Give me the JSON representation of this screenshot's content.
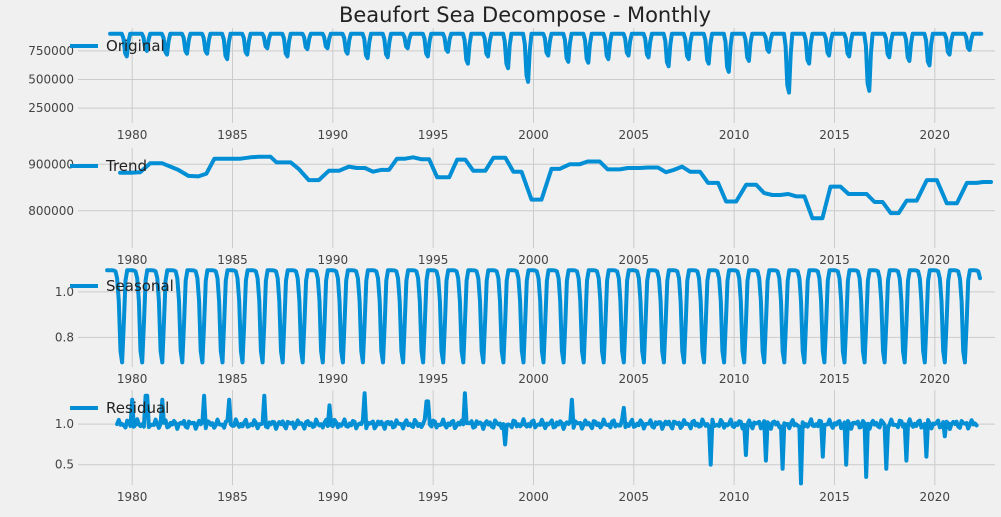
{
  "title": "Beaufort Sea Decompose - Monthly",
  "colors": {
    "series": "#008fd5",
    "background": "#f0f0f0",
    "grid": "#cbcbcb"
  },
  "chart_data": [
    {
      "type": "line",
      "name": "Original",
      "xlim": [
        1977.3,
        2023.0
      ],
      "ylim": [
        120000,
        950000
      ],
      "x_ticks": [
        1980,
        1985,
        1990,
        1995,
        2000,
        2005,
        2010,
        2015,
        2020
      ],
      "y_ticks": [
        250000,
        500000,
        750000
      ],
      "y_tick_labels": [
        "250000",
        "500000",
        "750000"
      ],
      "legend": "Original",
      "start": 1978.9,
      "step": 0.0833333,
      "seasonal_amplitude": [
        250000,
        190000,
        230000,
        220000,
        220000,
        280000,
        230000,
        160000,
        250000,
        170000,
        160000,
        220000,
        270000,
        260000,
        160000,
        250000,
        200000,
        330000,
        250000,
        380000,
        530000,
        240000,
        310000,
        320000,
        280000,
        240000,
        260000,
        360000,
        280000,
        330000,
        420000,
        300000,
        200000,
        650000,
        330000,
        240000,
        250000,
        630000,
        260000,
        300000,
        350000,
        230000,
        180000,
        300000,
        170000
      ],
      "max_value": 900000
    },
    {
      "type": "line",
      "name": "Trend",
      "xlim": [
        1977.3,
        2023.0
      ],
      "ylim": [
        720000,
        935000
      ],
      "x_ticks": [
        1980,
        1985,
        1990,
        1995,
        2000,
        2005,
        2010,
        2015,
        2020
      ],
      "y_ticks": [
        800000,
        900000
      ],
      "y_tick_labels": [
        "800000",
        "900000"
      ],
      "legend": "Trend",
      "points": [
        [
          1979.4,
          882000
        ],
        [
          1979.9,
          882000
        ],
        [
          1980.4,
          883000
        ],
        [
          1980.9,
          902000
        ],
        [
          1981.5,
          902000
        ],
        [
          1982.3,
          888000
        ],
        [
          1982.8,
          875000
        ],
        [
          1983.3,
          874000
        ],
        [
          1983.7,
          880000
        ],
        [
          1984.1,
          912000
        ],
        [
          1984.9,
          912000
        ],
        [
          1985.4,
          912000
        ],
        [
          1985.9,
          915000
        ],
        [
          1986.3,
          916000
        ],
        [
          1986.9,
          916000
        ],
        [
          1987.2,
          904000
        ],
        [
          1987.9,
          904000
        ],
        [
          1988.3,
          890000
        ],
        [
          1988.8,
          866000
        ],
        [
          1989.3,
          866000
        ],
        [
          1989.8,
          886000
        ],
        [
          1990.3,
          886000
        ],
        [
          1990.8,
          895000
        ],
        [
          1991.2,
          892000
        ],
        [
          1991.6,
          892000
        ],
        [
          1992.0,
          884000
        ],
        [
          1992.4,
          888000
        ],
        [
          1992.8,
          888000
        ],
        [
          1993.2,
          912000
        ],
        [
          1993.6,
          912000
        ],
        [
          1994.0,
          915000
        ],
        [
          1994.4,
          911000
        ],
        [
          1994.8,
          911000
        ],
        [
          1995.2,
          872000
        ],
        [
          1995.8,
          872000
        ],
        [
          1996.2,
          910000
        ],
        [
          1996.6,
          910000
        ],
        [
          1997.0,
          886000
        ],
        [
          1997.6,
          886000
        ],
        [
          1998.0,
          914000
        ],
        [
          1998.6,
          914000
        ],
        [
          1999.0,
          884000
        ],
        [
          1999.4,
          884000
        ],
        [
          1999.9,
          824000
        ],
        [
          2000.4,
          824000
        ],
        [
          2000.9,
          890000
        ],
        [
          2001.3,
          890000
        ],
        [
          2001.8,
          900000
        ],
        [
          2002.3,
          900000
        ],
        [
          2002.7,
          906000
        ],
        [
          2003.3,
          906000
        ],
        [
          2003.7,
          889000
        ],
        [
          2004.3,
          889000
        ],
        [
          2004.7,
          892000
        ],
        [
          2005.3,
          892000
        ],
        [
          2005.7,
          893000
        ],
        [
          2006.2,
          893000
        ],
        [
          2006.6,
          883000
        ],
        [
          2007.0,
          888000
        ],
        [
          2007.4,
          895000
        ],
        [
          2007.8,
          884000
        ],
        [
          2008.3,
          884000
        ],
        [
          2008.7,
          860000
        ],
        [
          2009.2,
          860000
        ],
        [
          2009.6,
          820000
        ],
        [
          2010.1,
          820000
        ],
        [
          2010.6,
          856000
        ],
        [
          2011.1,
          856000
        ],
        [
          2011.5,
          838000
        ],
        [
          2011.9,
          834000
        ],
        [
          2012.3,
          834000
        ],
        [
          2012.7,
          836000
        ],
        [
          2013.1,
          831000
        ],
        [
          2013.5,
          831000
        ],
        [
          2013.9,
          784000
        ],
        [
          2014.4,
          784000
        ],
        [
          2014.8,
          852000
        ],
        [
          2015.3,
          852000
        ],
        [
          2015.7,
          836000
        ],
        [
          2016.2,
          836000
        ],
        [
          2016.6,
          836000
        ],
        [
          2017.0,
          819000
        ],
        [
          2017.4,
          819000
        ],
        [
          2017.8,
          795000
        ],
        [
          2018.2,
          795000
        ],
        [
          2018.6,
          822000
        ],
        [
          2019.1,
          822000
        ],
        [
          2019.6,
          866000
        ],
        [
          2020.1,
          866000
        ],
        [
          2020.6,
          816000
        ],
        [
          2021.1,
          816000
        ],
        [
          2021.6,
          860000
        ],
        [
          2022.1,
          860000
        ],
        [
          2022.4,
          862000
        ],
        [
          2022.8,
          862000
        ]
      ]
    },
    {
      "type": "line",
      "name": "Seasonal",
      "xlim": [
        1977.3,
        2023.0
      ],
      "ylim": [
        0.67,
        1.105
      ],
      "x_ticks": [
        1980,
        1985,
        1990,
        1995,
        2000,
        2005,
        2010,
        2015,
        2020
      ],
      "y_ticks": [
        0.8,
        1.0
      ],
      "y_tick_labels": [
        "0.8",
        "1.0"
      ],
      "legend": "Seasonal",
      "start": 1978.75,
      "end": 2022.25,
      "cycle": [
        1.095,
        1.095,
        1.095,
        1.095,
        1.094,
        1.09,
        1.06,
        0.96,
        0.74,
        0.69,
        0.86,
        1.05
      ]
    },
    {
      "type": "line",
      "name": "Residual",
      "xlim": [
        1977.3,
        2023.0
      ],
      "ylim": [
        0.25,
        1.42
      ],
      "x_ticks": [
        1980,
        1985,
        1990,
        1995,
        2000,
        2005,
        2010,
        2015,
        2020
      ],
      "y_ticks": [
        0.5,
        1.0
      ],
      "y_tick_labels": [
        "0.5",
        "1.0"
      ],
      "legend": "Residual",
      "start": 1979.25,
      "step": 0.0833333,
      "baseline": 1.0,
      "spikes": [
        [
          1980.0,
          1.3
        ],
        [
          1980.7,
          1.35
        ],
        [
          1981.5,
          1.3
        ],
        [
          1983.6,
          1.35
        ],
        [
          1984.8,
          1.3
        ],
        [
          1986.6,
          1.35
        ],
        [
          1989.8,
          1.23
        ],
        [
          1991.6,
          1.38
        ],
        [
          1994.7,
          1.28
        ],
        [
          1996.6,
          1.38
        ],
        [
          1998.6,
          0.75
        ],
        [
          2001.9,
          1.3
        ],
        [
          2004.5,
          1.2
        ],
        [
          2008.8,
          0.5
        ],
        [
          2010.6,
          0.62
        ],
        [
          2011.6,
          0.55
        ],
        [
          2012.4,
          0.45
        ],
        [
          2013.3,
          0.27
        ],
        [
          2014.4,
          0.6
        ],
        [
          2015.6,
          0.5
        ],
        [
          2016.6,
          0.35
        ],
        [
          2017.6,
          0.45
        ],
        [
          2018.6,
          0.55
        ],
        [
          2019.6,
          0.6
        ],
        [
          2020.5,
          0.85
        ]
      ],
      "ripple": 0.06
    }
  ],
  "x_tick_labels": [
    "1980",
    "1985",
    "1990",
    "1995",
    "2000",
    "2005",
    "2010",
    "2015",
    "2020"
  ]
}
